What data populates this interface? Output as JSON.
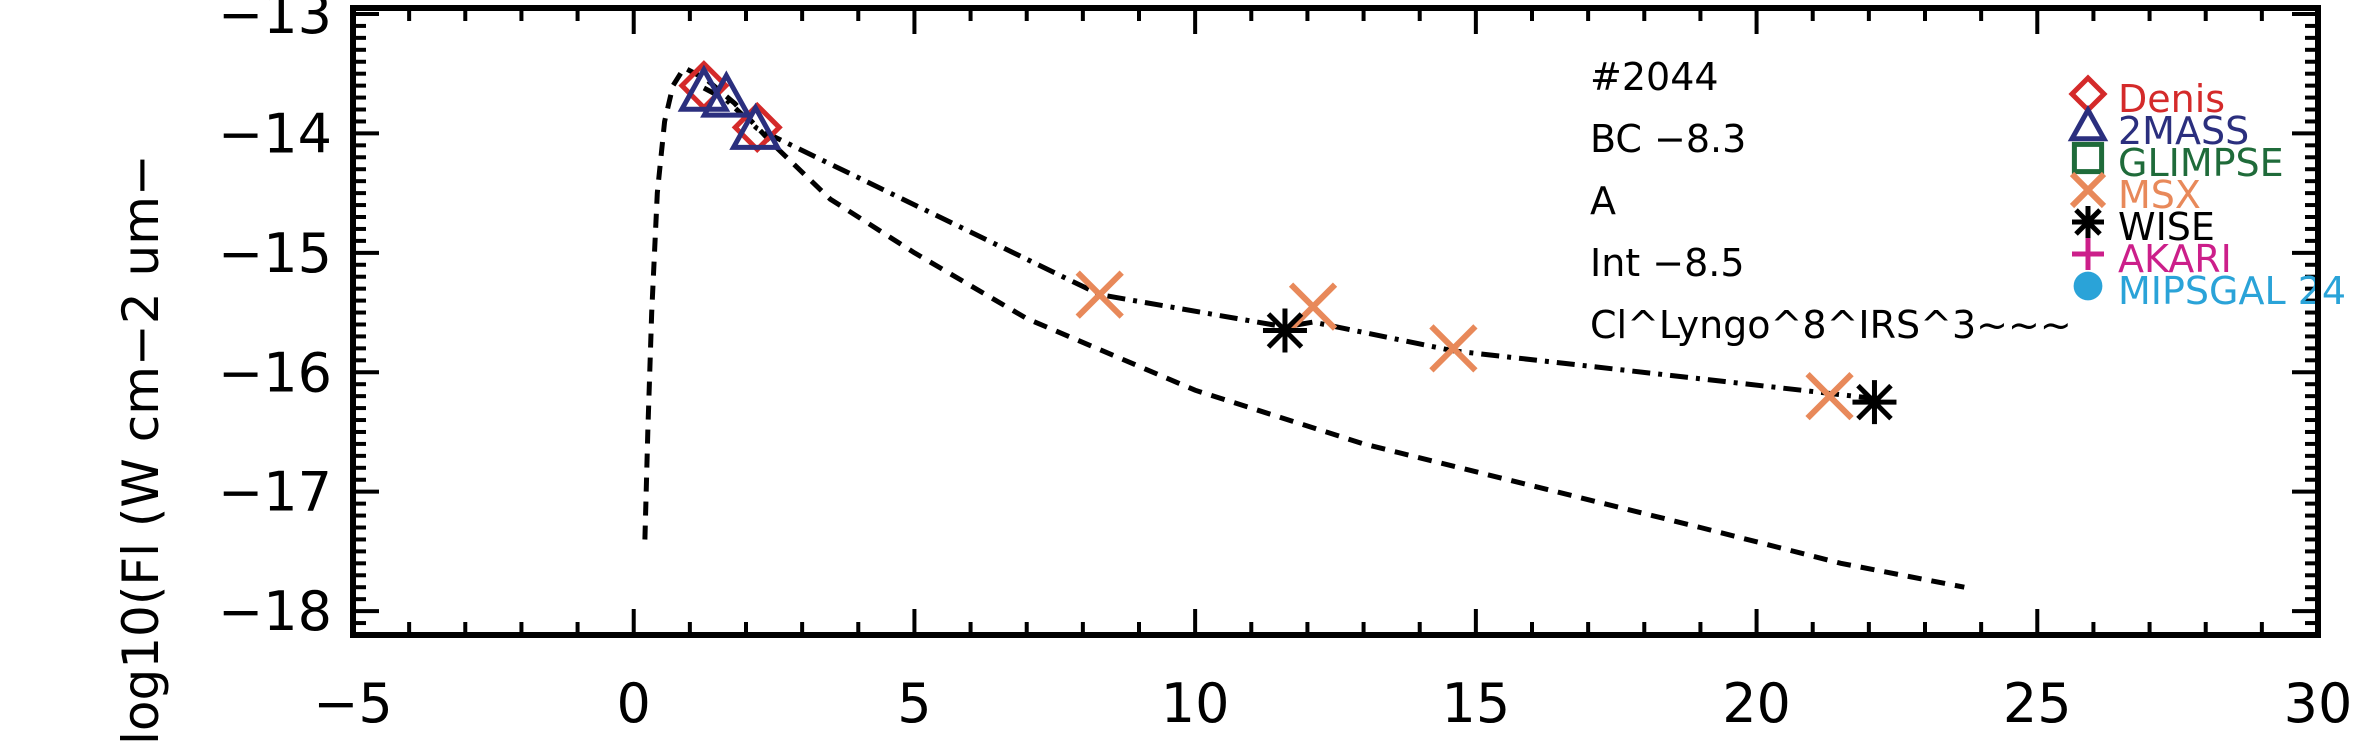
{
  "chart_data": {
    "type": "line",
    "xlabel": "",
    "ylabel": "log10(Fl (W cm−2 um−",
    "xlim": [
      -5,
      30
    ],
    "ylim": [
      -18.2,
      -12.95
    ],
    "x_ticks": [
      -5,
      0,
      5,
      10,
      15,
      20,
      25,
      30
    ],
    "x_tick_labels": [
      "−5",
      "0",
      "5",
      "10",
      "15",
      "20",
      "25",
      "30"
    ],
    "y_ticks": [
      -18,
      -17,
      -16,
      -15,
      -14,
      -13
    ],
    "y_tick_labels": [
      "−18",
      "−17",
      "−16",
      "−15",
      "−14",
      "−13"
    ],
    "annotations": [
      "#2044",
      "BC  −8.3",
      "A",
      "Int  −8.5",
      "Cl^Lyngo^8^IRS^3~~~"
    ],
    "series": [
      {
        "name": "Denis",
        "marker": "diamond",
        "color": "#d42a2a",
        "points": [
          [
            1.25,
            -13.6
          ],
          [
            2.2,
            -13.95
          ]
        ]
      },
      {
        "name": "2MASS",
        "marker": "triangle",
        "color": "#2b2f7e",
        "points": [
          [
            1.25,
            -13.65
          ],
          [
            1.65,
            -13.7
          ],
          [
            2.17,
            -13.97
          ]
        ]
      },
      {
        "name": "GLIMPSE",
        "marker": "square",
        "color": "#1f6b3a",
        "points": []
      },
      {
        "name": "MSX",
        "marker": "x",
        "color": "#e8895a",
        "points": [
          [
            8.3,
            -15.35
          ],
          [
            12.1,
            -15.45
          ],
          [
            14.6,
            -15.8
          ],
          [
            21.3,
            -16.2
          ]
        ]
      },
      {
        "name": "WISE",
        "marker": "asterisk",
        "color": "#000000",
        "points": [
          [
            11.6,
            -15.65
          ],
          [
            22.1,
            -16.25
          ]
        ]
      },
      {
        "name": "AKARI",
        "marker": "plus",
        "color": "#cc1f8a",
        "points": []
      },
      {
        "name": "MIPSGAL 24",
        "marker": "circle",
        "color": "#2aa3d8",
        "points": []
      }
    ],
    "curves": [
      {
        "style": "dashdot",
        "color": "#000000",
        "points": [
          [
            1.25,
            -13.62
          ],
          [
            1.65,
            -13.72
          ],
          [
            2.2,
            -13.96
          ],
          [
            8.3,
            -15.35
          ],
          [
            11.6,
            -15.62
          ],
          [
            12.1,
            -15.58
          ],
          [
            14.6,
            -15.82
          ],
          [
            22.1,
            -16.22
          ]
        ]
      },
      {
        "style": "dashed",
        "color": "#000000",
        "points": [
          [
            0.2,
            -17.4
          ],
          [
            0.25,
            -16.5
          ],
          [
            0.32,
            -15.5
          ],
          [
            0.42,
            -14.5
          ],
          [
            0.55,
            -13.9
          ],
          [
            0.7,
            -13.6
          ],
          [
            0.9,
            -13.45
          ],
          [
            1.3,
            -13.55
          ],
          [
            1.8,
            -13.75
          ],
          [
            2.5,
            -14.1
          ],
          [
            3.5,
            -14.55
          ],
          [
            5,
            -15.0
          ],
          [
            7,
            -15.55
          ],
          [
            10,
            -16.15
          ],
          [
            13,
            -16.6
          ],
          [
            16,
            -16.95
          ],
          [
            19,
            -17.3
          ],
          [
            21.5,
            -17.6
          ],
          [
            23.7,
            -17.8
          ]
        ]
      }
    ],
    "grid": false,
    "legend_position": "right"
  }
}
